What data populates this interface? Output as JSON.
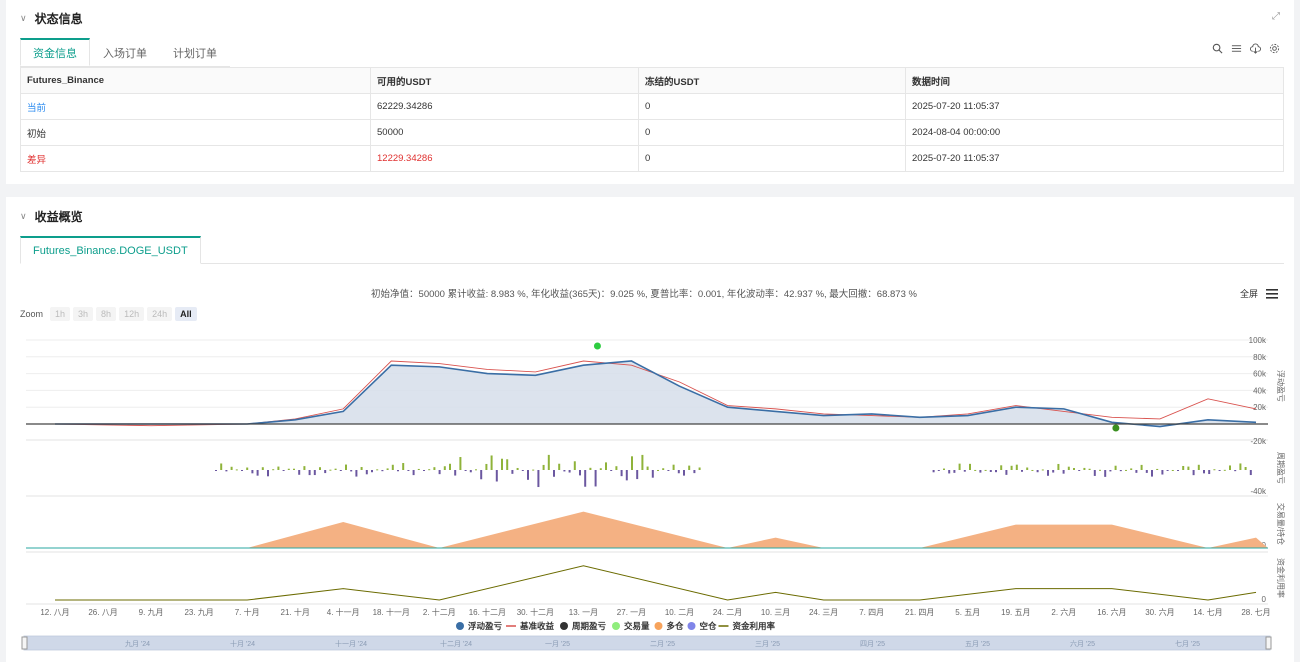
{
  "status_panel": {
    "title": "状态信息",
    "tabs": [
      "资金信息",
      "入场订单",
      "计划订单"
    ],
    "table": {
      "headers": [
        "Futures_Binance",
        "可用的USDT",
        "冻结的USDT",
        "数据时间"
      ],
      "rows": [
        [
          "当前",
          "62229.34286",
          "0",
          "2025-07-20 11:05:37"
        ],
        [
          "初始",
          "50000",
          "0",
          "2024-08-04 00:00:00"
        ],
        [
          "差异",
          "12229.34286",
          "0",
          "2025-07-20 11:05:37"
        ]
      ]
    }
  },
  "profit_panel": {
    "title": "收益概览",
    "tab": "Futures_Binance.DOGE_USDT",
    "summary": "初始净值：50000 累计收益: 8.983 %, 年化收益(365天)：9.025 %, 夏普比率：0.001, 年化波动率：42.937 %, 最大回撤：68.873 %",
    "fullscreen_label": "全屏",
    "zoom_label": "Zoom",
    "zoom_buttons": [
      "1h",
      "3h",
      "8h",
      "12h",
      "24h",
      "All"
    ]
  },
  "chart_data": {
    "type": "line",
    "panes": [
      {
        "name": "浮动盈亏",
        "ticks": [
          "100k",
          "80k",
          "60k",
          "40k",
          "20k",
          "-20k"
        ]
      },
      {
        "name": "周期盈亏",
        "ticks": [
          "-40k"
        ]
      },
      {
        "name": "交易量/持仓",
        "ticks": [
          "0"
        ]
      },
      {
        "name": "资金利用率",
        "ticks": [
          "0"
        ]
      }
    ],
    "x_ticks": [
      "12. 八月",
      "26. 八月",
      "9. 九月",
      "23. 九月",
      "7. 十月",
      "21. 十月",
      "4. 十一月",
      "18. 十一月",
      "2. 十二月",
      "16. 十二月",
      "30. 十二月",
      "13. 一月",
      "27. 一月",
      "10. 二月",
      "24. 二月",
      "10. 三月",
      "24. 三月",
      "7. 四月",
      "21. 四月",
      "5. 五月",
      "19. 五月",
      "2. 六月",
      "16. 六月",
      "30. 六月",
      "14. 七月",
      "28. 七月"
    ],
    "navigator_ticks": [
      "九月 '24",
      "十月 '24",
      "十一月 '24",
      "十二月 '24",
      "一月 '25",
      "二月 '25",
      "三月 '25",
      "四月 '25",
      "五月 '25",
      "六月 '25",
      "七月 '25"
    ],
    "legend": [
      {
        "name": "浮动盈亏",
        "color": "#3a6ea5",
        "kind": "dot"
      },
      {
        "name": "基准收益",
        "color": "#d9534f",
        "kind": "line"
      },
      {
        "name": "周期盈亏",
        "color": "#333333",
        "kind": "dot"
      },
      {
        "name": "交易量",
        "color": "#90ed7d",
        "kind": "dot"
      },
      {
        "name": "多仓",
        "color": "#f7a35c",
        "kind": "dot"
      },
      {
        "name": "空仓",
        "color": "#8085e9",
        "kind": "dot"
      },
      {
        "name": "资金利用率",
        "color": "#6b6b00",
        "kind": "line"
      }
    ],
    "series": [
      {
        "name": "浮动盈亏",
        "x_index": [
          0,
          2,
          4,
          5,
          6,
          7,
          8,
          9,
          10,
          11,
          12,
          13,
          14,
          15,
          16,
          17,
          18,
          19,
          20,
          21,
          22,
          23,
          24,
          25
        ],
        "values": [
          0,
          0,
          0,
          5000,
          15000,
          70000,
          68000,
          60000,
          58000,
          70000,
          75000,
          45000,
          20000,
          15000,
          10000,
          12000,
          8000,
          10000,
          20000,
          18000,
          2000,
          -3000,
          5000,
          2000
        ]
      },
      {
        "name": "基准收益",
        "x_index": [
          0,
          2,
          4,
          5,
          6,
          7,
          8,
          9,
          10,
          11,
          12,
          13,
          14,
          15,
          16,
          17,
          18,
          19,
          20,
          21,
          22,
          23,
          24,
          25
        ],
        "values": [
          0,
          -2000,
          0,
          6000,
          18000,
          75000,
          72000,
          65000,
          62000,
          75000,
          70000,
          50000,
          22000,
          18000,
          12000,
          10000,
          8000,
          12000,
          22000,
          15000,
          8000,
          6000,
          30000,
          18000
        ]
      },
      {
        "name": "多仓",
        "x_index": [
          0,
          4,
          6,
          8,
          11,
          14,
          15,
          16,
          18,
          20,
          22,
          24,
          25
        ],
        "values": [
          0,
          0,
          1,
          0,
          1.4,
          0,
          0.4,
          0,
          0,
          0.9,
          0.9,
          0,
          0.4
        ]
      },
      {
        "name": "资金利用率",
        "x_index": [
          0,
          4,
          6,
          8,
          11,
          14,
          15,
          16,
          18,
          20,
          22,
          24,
          25
        ],
        "values": [
          0,
          0,
          0.3,
          0,
          0.9,
          0,
          0.2,
          0,
          0,
          0.3,
          0.3,
          0,
          0.2
        ]
      }
    ]
  }
}
